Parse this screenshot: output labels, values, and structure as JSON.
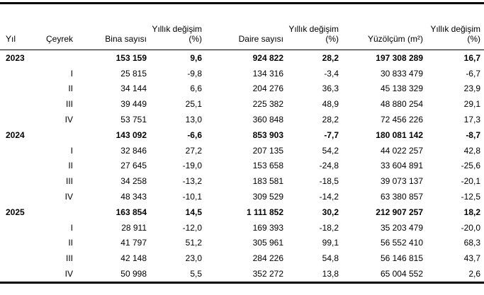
{
  "page": {
    "background_color": "#ffffff",
    "text_color": "#000000",
    "border_color": "#000000"
  },
  "table": {
    "columns": [
      {
        "label": "Yıl",
        "align": "left"
      },
      {
        "label": "Çeyrek",
        "align": "right"
      },
      {
        "label": "Bina sayısı",
        "align": "right"
      },
      {
        "label": "Yıllık değişim (%)",
        "align": "right"
      },
      {
        "label": "Daire sayısı",
        "align": "right"
      },
      {
        "label": "Yıllık değişim (%)",
        "align": "right"
      },
      {
        "label": "Yüzölçüm (m²)",
        "align": "right"
      },
      {
        "label": "Yıllık değişim (%)",
        "align": "right"
      }
    ],
    "rows": [
      {
        "year": "2023",
        "quarter": "",
        "bold": true,
        "values": [
          "153 159",
          "9,6",
          "924 822",
          "28,2",
          "197 308 289",
          "16,7"
        ]
      },
      {
        "year": "",
        "quarter": "I",
        "bold": false,
        "values": [
          "25 815",
          "-9,8",
          "134 316",
          "-3,4",
          "30 833 479",
          "-6,7"
        ]
      },
      {
        "year": "",
        "quarter": "II",
        "bold": false,
        "values": [
          "34 144",
          "6,6",
          "204 276",
          "36,3",
          "45 138 329",
          "23,9"
        ]
      },
      {
        "year": "",
        "quarter": "III",
        "bold": false,
        "values": [
          "39 449",
          "25,1",
          "225 382",
          "48,9",
          "48 880 254",
          "29,1"
        ]
      },
      {
        "year": "",
        "quarter": "IV",
        "bold": false,
        "values": [
          "53 751",
          "13,0",
          "360 848",
          "28,2",
          "72 456 226",
          "17,3"
        ]
      },
      {
        "year": "2024",
        "quarter": "",
        "bold": true,
        "values": [
          "143 092",
          "-6,6",
          "853 903",
          "-7,7",
          "180 081 142",
          "-8,7"
        ]
      },
      {
        "year": "",
        "quarter": "I",
        "bold": false,
        "values": [
          "32 846",
          "27,2",
          "207 135",
          "54,2",
          "44 022 257",
          "42,8"
        ]
      },
      {
        "year": "",
        "quarter": "II",
        "bold": false,
        "values": [
          "27 645",
          "-19,0",
          "153 658",
          "-24,8",
          "33 604 891",
          "-25,6"
        ]
      },
      {
        "year": "",
        "quarter": "III",
        "bold": false,
        "values": [
          "34 258",
          "-13,2",
          "183 581",
          "-18,5",
          "39 073 137",
          "-20,1"
        ]
      },
      {
        "year": "",
        "quarter": "IV",
        "bold": false,
        "values": [
          "48 343",
          "-10,1",
          "309 529",
          "-14,2",
          "63 380 857",
          "-12,5"
        ]
      },
      {
        "year": "2025",
        "quarter": "",
        "bold": true,
        "values": [
          "163 854",
          "14,5",
          "1 111 852",
          "30,2",
          "212 907 257",
          "18,2"
        ]
      },
      {
        "year": "",
        "quarter": "I",
        "bold": false,
        "values": [
          "28 911",
          "-12,0",
          "169 393",
          "-18,2",
          "35 203 479",
          "-20,0"
        ]
      },
      {
        "year": "",
        "quarter": "II",
        "bold": false,
        "values": [
          "41 797",
          "51,2",
          "305 961",
          "99,1",
          "56 552 410",
          "68,3"
        ]
      },
      {
        "year": "",
        "quarter": "III",
        "bold": false,
        "values": [
          "42 148",
          "23,0",
          "284 226",
          "54,8",
          "56 146 815",
          "43,7"
        ]
      },
      {
        "year": "",
        "quarter": "IV",
        "bold": false,
        "values": [
          "50 998",
          "5,5",
          "352 272",
          "13,8",
          "65 004 552",
          "2,6"
        ]
      }
    ]
  }
}
